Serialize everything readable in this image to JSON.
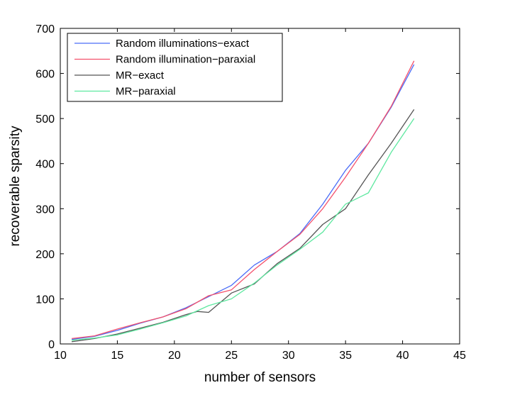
{
  "chart_data": {
    "type": "line",
    "title": "",
    "xlabel": "number of sensors",
    "ylabel": "recoverable sparsity",
    "xlim": [
      10,
      45
    ],
    "ylim": [
      0,
      700
    ],
    "xticks": [
      10,
      15,
      20,
      25,
      30,
      35,
      40,
      45
    ],
    "yticks": [
      0,
      100,
      200,
      300,
      400,
      500,
      600,
      700
    ],
    "grid": false,
    "legend_position": "top-left",
    "series": [
      {
        "name": "Random illuminations−exact",
        "color": "#4a6cf7",
        "x": [
          11,
          13,
          15,
          17,
          19,
          21,
          23,
          25,
          27,
          29,
          31,
          33,
          35,
          37,
          39,
          41
        ],
        "y": [
          10,
          17,
          30,
          46,
          60,
          80,
          105,
          130,
          175,
          205,
          245,
          310,
          385,
          445,
          525,
          620
        ]
      },
      {
        "name": "Random illumination−paraxial",
        "color": "#f4516c",
        "x": [
          11,
          13,
          15,
          17,
          19,
          21,
          23,
          25,
          27,
          29,
          31,
          33,
          35,
          37,
          39,
          41
        ],
        "y": [
          12,
          18,
          33,
          47,
          60,
          78,
          107,
          120,
          165,
          205,
          243,
          300,
          370,
          445,
          527,
          628
        ]
      },
      {
        "name": "MR−exact",
        "color": "#555555",
        "x": [
          11,
          13,
          15,
          17,
          19,
          21,
          22,
          23,
          25,
          27,
          29,
          31,
          33,
          35,
          37,
          39,
          41
        ],
        "y": [
          5,
          12,
          22,
          35,
          48,
          65,
          72,
          70,
          113,
          133,
          178,
          212,
          265,
          300,
          375,
          445,
          520
        ]
      },
      {
        "name": "MR−paraxial",
        "color": "#5ee8a0",
        "x": [
          11,
          13,
          15,
          17,
          19,
          21,
          23,
          25,
          27,
          29,
          31,
          33,
          35,
          37,
          39,
          41
        ],
        "y": [
          8,
          13,
          20,
          33,
          47,
          62,
          85,
          100,
          135,
          175,
          210,
          248,
          310,
          335,
          425,
          500
        ]
      }
    ]
  }
}
